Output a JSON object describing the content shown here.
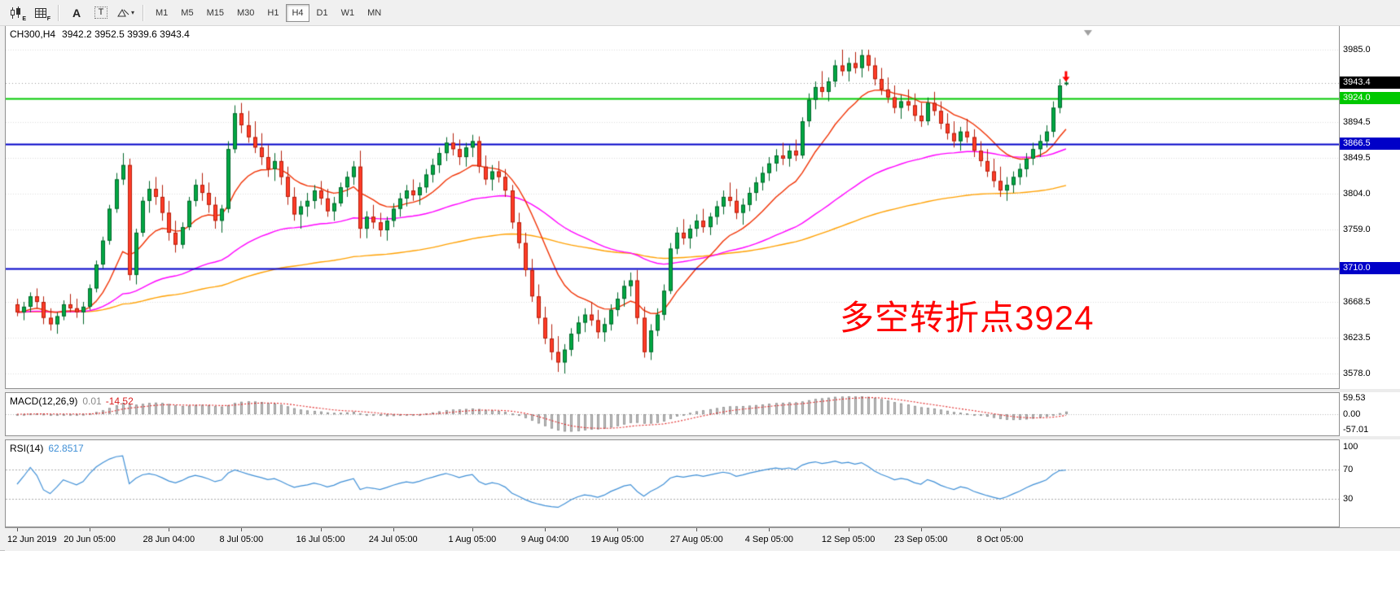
{
  "toolbar": {
    "chart_icon_sub": "E",
    "grid_icon_sub": "F",
    "text_tool_label": "A",
    "textbox_tool_label": "T",
    "caret": "▾",
    "timeframes": [
      "M1",
      "M5",
      "M15",
      "M30",
      "H1",
      "H4",
      "D1",
      "W1",
      "MN"
    ],
    "active_timeframe": "H4"
  },
  "chart": {
    "symbol_period": "CH300,H4",
    "ohlc_text": "3942.2 3952.5 3939.6 3943.4"
  },
  "macd": {
    "label": "MACD(12,26,9)",
    "value_main": "0.01",
    "value_signal": "-14.52",
    "ticks": [
      "59.53",
      "0.00",
      "-57.01"
    ]
  },
  "rsi": {
    "label": "RSI(14)",
    "value": "62.8517",
    "ticks": [
      "100",
      "70",
      "30"
    ]
  },
  "chart_data": {
    "type": "candlestick",
    "symbol": "CH300",
    "period": "H4",
    "ohlc_current": {
      "open": 3942.2,
      "high": 3952.5,
      "low": 3939.6,
      "close": 3943.4
    },
    "current_price": 3943.4,
    "current_price_box_color": "#000000",
    "price_range": [
      3578.0,
      3985.0
    ],
    "y_ticks": [
      3985.0,
      3894.5,
      3849.5,
      3804.0,
      3759.0,
      3668.5,
      3623.5,
      3578.0
    ],
    "levels": [
      {
        "value": 3924.0,
        "color": "#00C800",
        "width": 2
      },
      {
        "value": 3866.5,
        "color": "#0000C8",
        "width": 2
      },
      {
        "value": 3710.0,
        "color": "#0000C8",
        "width": 2
      }
    ],
    "annotation": {
      "text": "多空转折点3924",
      "color": "#FF0000"
    },
    "moving_averages": [
      {
        "period": 13,
        "color": "#F03000"
      },
      {
        "period": 55,
        "color": "#FF00FF"
      },
      {
        "period": 130,
        "color": "#FFA000"
      }
    ],
    "macd": {
      "fast": 12,
      "slow": 26,
      "signal": 9,
      "histogram_color": "#c6c6c6",
      "histogram_border": "#8a8a8a",
      "signal_color": "#e02828"
    },
    "rsi": {
      "period": 14,
      "levels": [
        70,
        30
      ],
      "color": "#3f8fd6"
    },
    "colors": {
      "up": "#00A843",
      "up_border": "#00662A",
      "down": "#FF3C28",
      "down_border": "#B41E0A"
    },
    "time_labels": [
      "12 Jun 2019",
      "20 Jun 05:00",
      "28 Jun 04:00",
      "8 Jul 05:00",
      "16 Jul 05:00",
      "24 Jul 05:00",
      "1 Aug 05:00",
      "9 Aug 04:00",
      "19 Aug 05:00",
      "27 Aug 05:00",
      "4 Sep 05:00",
      "12 Sep 05:00",
      "23 Sep 05:00",
      "8 Oct 05:00"
    ],
    "candles": [
      [
        3665,
        3672,
        3650,
        3655
      ],
      [
        3655,
        3668,
        3645,
        3662
      ],
      [
        3662,
        3680,
        3655,
        3675
      ],
      [
        3675,
        3685,
        3660,
        3668
      ],
      [
        3668,
        3675,
        3640,
        3648
      ],
      [
        3648,
        3660,
        3632,
        3640
      ],
      [
        3640,
        3655,
        3628,
        3650
      ],
      [
        3650,
        3670,
        3645,
        3665
      ],
      [
        3665,
        3678,
        3655,
        3660
      ],
      [
        3660,
        3672,
        3648,
        3655
      ],
      [
        3655,
        3668,
        3640,
        3662
      ],
      [
        3662,
        3690,
        3658,
        3685
      ],
      [
        3685,
        3720,
        3680,
        3715
      ],
      [
        3715,
        3750,
        3710,
        3745
      ],
      [
        3745,
        3790,
        3740,
        3785
      ],
      [
        3785,
        3830,
        3780,
        3822
      ],
      [
        3822,
        3855,
        3815,
        3840
      ],
      [
        3840,
        3848,
        3695,
        3702
      ],
      [
        3702,
        3760,
        3690,
        3755
      ],
      [
        3755,
        3800,
        3750,
        3795
      ],
      [
        3795,
        3820,
        3780,
        3810
      ],
      [
        3810,
        3825,
        3790,
        3800
      ],
      [
        3800,
        3815,
        3770,
        3780
      ],
      [
        3780,
        3795,
        3745,
        3755
      ],
      [
        3755,
        3770,
        3730,
        3740
      ],
      [
        3740,
        3768,
        3735,
        3762
      ],
      [
        3762,
        3800,
        3758,
        3795
      ],
      [
        3795,
        3822,
        3788,
        3815
      ],
      [
        3815,
        3830,
        3795,
        3805
      ],
      [
        3805,
        3818,
        3780,
        3790
      ],
      [
        3790,
        3800,
        3760,
        3770
      ],
      [
        3770,
        3790,
        3755,
        3785
      ],
      [
        3785,
        3870,
        3780,
        3860
      ],
      [
        3860,
        3915,
        3855,
        3905
      ],
      [
        3905,
        3918,
        3880,
        3890
      ],
      [
        3890,
        3908,
        3868,
        3875
      ],
      [
        3875,
        3895,
        3855,
        3862
      ],
      [
        3862,
        3880,
        3840,
        3850
      ],
      [
        3850,
        3865,
        3825,
        3835
      ],
      [
        3835,
        3855,
        3820,
        3845
      ],
      [
        3845,
        3858,
        3815,
        3825
      ],
      [
        3825,
        3838,
        3790,
        3800
      ],
      [
        3800,
        3812,
        3770,
        3778
      ],
      [
        3778,
        3795,
        3760,
        3788
      ],
      [
        3788,
        3805,
        3775,
        3795
      ],
      [
        3795,
        3815,
        3785,
        3808
      ],
      [
        3808,
        3820,
        3790,
        3798
      ],
      [
        3798,
        3810,
        3775,
        3782
      ],
      [
        3782,
        3800,
        3770,
        3792
      ],
      [
        3792,
        3818,
        3788,
        3812
      ],
      [
        3812,
        3832,
        3800,
        3825
      ],
      [
        3825,
        3845,
        3815,
        3838
      ],
      [
        3838,
        3858,
        3748,
        3760
      ],
      [
        3760,
        3782,
        3748,
        3775
      ],
      [
        3775,
        3790,
        3760,
        3768
      ],
      [
        3768,
        3780,
        3750,
        3758
      ],
      [
        3758,
        3775,
        3745,
        3770
      ],
      [
        3770,
        3792,
        3762,
        3785
      ],
      [
        3785,
        3805,
        3775,
        3798
      ],
      [
        3798,
        3815,
        3788,
        3808
      ],
      [
        3808,
        3822,
        3795,
        3802
      ],
      [
        3802,
        3818,
        3790,
        3812
      ],
      [
        3812,
        3835,
        3805,
        3828
      ],
      [
        3828,
        3848,
        3818,
        3840
      ],
      [
        3840,
        3862,
        3830,
        3855
      ],
      [
        3855,
        3875,
        3845,
        3868
      ],
      [
        3868,
        3880,
        3852,
        3860
      ],
      [
        3860,
        3872,
        3840,
        3850
      ],
      [
        3850,
        3868,
        3838,
        3862
      ],
      [
        3862,
        3878,
        3850,
        3870
      ],
      [
        3870,
        3876,
        3830,
        3838
      ],
      [
        3838,
        3852,
        3815,
        3822
      ],
      [
        3822,
        3840,
        3808,
        3832
      ],
      [
        3832,
        3845,
        3818,
        3825
      ],
      [
        3825,
        3835,
        3800,
        3808
      ],
      [
        3808,
        3815,
        3760,
        3768
      ],
      [
        3768,
        3780,
        3735,
        3742
      ],
      [
        3742,
        3755,
        3700,
        3708
      ],
      [
        3708,
        3722,
        3668,
        3675
      ],
      [
        3675,
        3690,
        3640,
        3648
      ],
      [
        3648,
        3662,
        3615,
        3622
      ],
      [
        3622,
        3640,
        3595,
        3605
      ],
      [
        3605,
        3625,
        3580,
        3592
      ],
      [
        3592,
        3615,
        3578,
        3608
      ],
      [
        3608,
        3635,
        3600,
        3628
      ],
      [
        3628,
        3650,
        3618,
        3642
      ],
      [
        3642,
        3660,
        3630,
        3652
      ],
      [
        3652,
        3668,
        3638,
        3645
      ],
      [
        3645,
        3658,
        3622,
        3630
      ],
      [
        3630,
        3648,
        3618,
        3640
      ],
      [
        3640,
        3665,
        3632,
        3658
      ],
      [
        3658,
        3680,
        3650,
        3672
      ],
      [
        3672,
        3695,
        3662,
        3688
      ],
      [
        3688,
        3705,
        3675,
        3695
      ],
      [
        3695,
        3708,
        3640,
        3648
      ],
      [
        3648,
        3662,
        3598,
        3605
      ],
      [
        3605,
        3640,
        3595,
        3632
      ],
      [
        3632,
        3660,
        3625,
        3652
      ],
      [
        3652,
        3690,
        3645,
        3682
      ],
      [
        3682,
        3742,
        3678,
        3735
      ],
      [
        3735,
        3762,
        3728,
        3755
      ],
      [
        3755,
        3772,
        3740,
        3748
      ],
      [
        3748,
        3765,
        3735,
        3760
      ],
      [
        3760,
        3778,
        3750,
        3770
      ],
      [
        3770,
        3785,
        3755,
        3762
      ],
      [
        3762,
        3780,
        3752,
        3775
      ],
      [
        3775,
        3795,
        3765,
        3788
      ],
      [
        3788,
        3808,
        3778,
        3800
      ],
      [
        3800,
        3818,
        3788,
        3795
      ],
      [
        3795,
        3810,
        3772,
        3780
      ],
      [
        3780,
        3798,
        3765,
        3790
      ],
      [
        3790,
        3812,
        3782,
        3805
      ],
      [
        3805,
        3825,
        3795,
        3818
      ],
      [
        3818,
        3838,
        3808,
        3830
      ],
      [
        3830,
        3850,
        3820,
        3842
      ],
      [
        3842,
        3860,
        3832,
        3852
      ],
      [
        3852,
        3868,
        3840,
        3848
      ],
      [
        3848,
        3865,
        3838,
        3858
      ],
      [
        3858,
        3872,
        3845,
        3852
      ],
      [
        3852,
        3900,
        3848,
        3895
      ],
      [
        3895,
        3930,
        3888,
        3922
      ],
      [
        3922,
        3945,
        3910,
        3938
      ],
      [
        3938,
        3958,
        3925,
        3932
      ],
      [
        3932,
        3950,
        3920,
        3945
      ],
      [
        3945,
        3972,
        3938,
        3965
      ],
      [
        3965,
        3985,
        3952,
        3958
      ],
      [
        3958,
        3975,
        3945,
        3968
      ],
      [
        3968,
        3982,
        3955,
        3962
      ],
      [
        3962,
        3985,
        3950,
        3978
      ],
      [
        3978,
        3985,
        3958,
        3965
      ],
      [
        3965,
        3975,
        3940,
        3948
      ],
      [
        3948,
        3962,
        3928,
        3935
      ],
      [
        3935,
        3950,
        3918,
        3925
      ],
      [
        3925,
        3940,
        3905,
        3912
      ],
      [
        3912,
        3928,
        3898,
        3920
      ],
      [
        3920,
        3935,
        3908,
        3915
      ],
      [
        3915,
        3930,
        3895,
        3902
      ],
      [
        3902,
        3918,
        3888,
        3895
      ],
      [
        3895,
        3925,
        3890,
        3918
      ],
      [
        3918,
        3932,
        3902,
        3908
      ],
      [
        3908,
        3920,
        3885,
        3892
      ],
      [
        3892,
        3905,
        3872,
        3880
      ],
      [
        3880,
        3895,
        3862,
        3870
      ],
      [
        3870,
        3888,
        3858,
        3882
      ],
      [
        3882,
        3898,
        3868,
        3875
      ],
      [
        3875,
        3885,
        3850,
        3858
      ],
      [
        3858,
        3870,
        3838,
        3845
      ],
      [
        3845,
        3860,
        3825,
        3832
      ],
      [
        3832,
        3848,
        3812,
        3820
      ],
      [
        3820,
        3838,
        3800,
        3808
      ],
      [
        3808,
        3825,
        3795,
        3815
      ],
      [
        3815,
        3832,
        3805,
        3825
      ],
      [
        3825,
        3842,
        3815,
        3835
      ],
      [
        3835,
        3855,
        3825,
        3848
      ],
      [
        3848,
        3868,
        3840,
        3860
      ],
      [
        3860,
        3878,
        3850,
        3870
      ],
      [
        3870,
        3890,
        3862,
        3882
      ],
      [
        3882,
        3920,
        3875,
        3912
      ],
      [
        3912,
        3948,
        3905,
        3940
      ],
      [
        3942.2,
        3952.5,
        3939.6,
        3943.4
      ]
    ]
  }
}
